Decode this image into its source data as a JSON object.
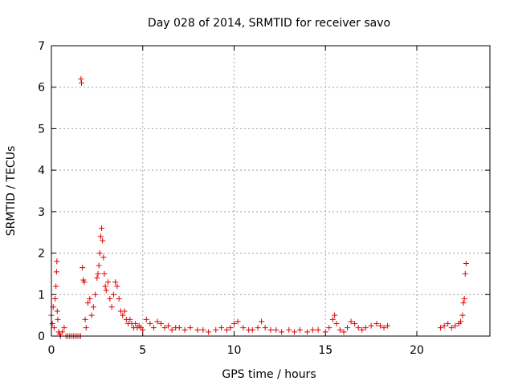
{
  "chart_data": {
    "type": "scatter",
    "title": "Day 028 of 2014, SRMTID for receiver savo",
    "xlabel": "GPS time / hours",
    "ylabel": "SRMTID / TECUs",
    "xlim": [
      0,
      24
    ],
    "ylim": [
      0,
      7
    ],
    "x_ticks": [
      "0",
      "5",
      "10",
      "15",
      "20"
    ],
    "x_tick_values": [
      0,
      5,
      10,
      15,
      20
    ],
    "y_ticks": [
      "0",
      "1",
      "2",
      "3",
      "4",
      "5",
      "6",
      "7"
    ],
    "y_tick_values": [
      0,
      1,
      2,
      3,
      4,
      5,
      6,
      7
    ],
    "grid": true,
    "marker": "+",
    "color": "#e00000",
    "series": [
      {
        "name": "SRMTID",
        "x": [
          0.0,
          0.05,
          0.1,
          0.15,
          0.2,
          0.25,
          0.28,
          0.3,
          0.32,
          0.35,
          0.4,
          0.45,
          0.5,
          0.6,
          0.7,
          0.8,
          0.9,
          1.0,
          1.1,
          1.2,
          1.3,
          1.4,
          1.5,
          1.6,
          1.62,
          1.65,
          1.7,
          1.75,
          1.8,
          1.85,
          1.9,
          2.0,
          2.1,
          2.2,
          2.3,
          2.4,
          2.5,
          2.55,
          2.6,
          2.65,
          2.7,
          2.75,
          2.8,
          2.85,
          2.9,
          2.95,
          3.0,
          3.1,
          3.2,
          3.3,
          3.4,
          3.5,
          3.6,
          3.7,
          3.8,
          3.9,
          4.0,
          4.1,
          4.2,
          4.3,
          4.4,
          4.5,
          4.6,
          4.7,
          4.8,
          4.9,
          5.0,
          5.2,
          5.4,
          5.6,
          5.8,
          6.0,
          6.2,
          6.4,
          6.6,
          6.8,
          7.0,
          7.3,
          7.6,
          8.0,
          8.3,
          8.6,
          9.0,
          9.3,
          9.6,
          9.8,
          10.0,
          10.2,
          10.5,
          10.8,
          11.0,
          11.3,
          11.5,
          11.7,
          12.0,
          12.3,
          12.6,
          13.0,
          13.3,
          13.6,
          14.0,
          14.3,
          14.6,
          15.0,
          15.2,
          15.4,
          15.5,
          15.6,
          15.8,
          16.0,
          16.2,
          16.4,
          16.6,
          16.8,
          17.0,
          17.2,
          17.5,
          17.8,
          18.0,
          18.2,
          18.4,
          21.3,
          21.5,
          21.7,
          21.9,
          22.1,
          22.3,
          22.4,
          22.5,
          22.55,
          22.6,
          22.65,
          22.7
        ],
        "y": [
          0.5,
          0.3,
          0.7,
          0.2,
          0.9,
          1.2,
          1.55,
          1.8,
          0.6,
          0.4,
          0.1,
          0.05,
          0.0,
          0.1,
          0.2,
          0.0,
          0.0,
          0.0,
          0.0,
          0.0,
          0.0,
          0.0,
          0.0,
          0.0,
          6.2,
          6.1,
          1.65,
          1.35,
          1.3,
          0.4,
          0.2,
          0.8,
          0.9,
          0.5,
          0.7,
          1.0,
          1.4,
          1.5,
          1.7,
          2.0,
          2.4,
          2.6,
          2.3,
          1.9,
          1.5,
          1.2,
          1.1,
          1.3,
          0.9,
          0.7,
          1.0,
          1.3,
          1.2,
          0.9,
          0.6,
          0.5,
          0.6,
          0.4,
          0.3,
          0.4,
          0.3,
          0.2,
          0.3,
          0.2,
          0.25,
          0.2,
          0.15,
          0.4,
          0.3,
          0.2,
          0.35,
          0.3,
          0.2,
          0.25,
          0.15,
          0.2,
          0.2,
          0.15,
          0.2,
          0.15,
          0.15,
          0.1,
          0.15,
          0.2,
          0.15,
          0.2,
          0.3,
          0.35,
          0.2,
          0.15,
          0.15,
          0.2,
          0.35,
          0.2,
          0.15,
          0.15,
          0.1,
          0.15,
          0.1,
          0.15,
          0.1,
          0.15,
          0.15,
          0.1,
          0.2,
          0.4,
          0.5,
          0.3,
          0.15,
          0.1,
          0.2,
          0.35,
          0.3,
          0.2,
          0.15,
          0.2,
          0.25,
          0.3,
          0.25,
          0.2,
          0.25,
          0.2,
          0.25,
          0.3,
          0.2,
          0.25,
          0.3,
          0.35,
          0.5,
          0.8,
          0.9,
          1.5,
          1.75
        ]
      }
    ]
  }
}
